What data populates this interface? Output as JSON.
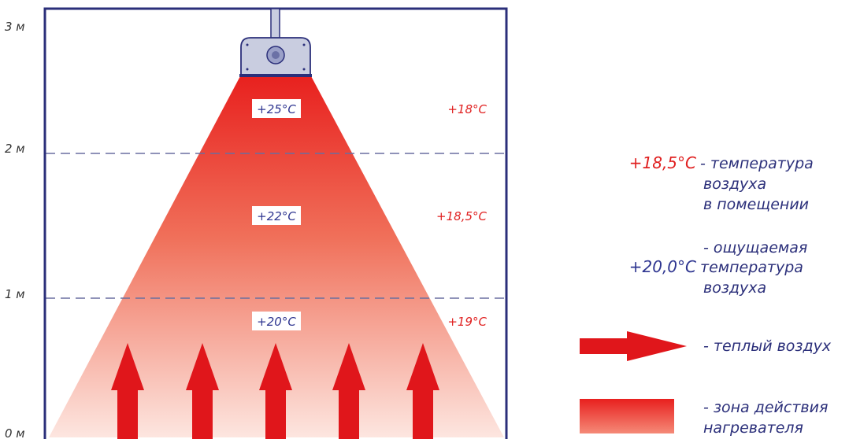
{
  "axis_labels": [
    "3 м",
    "2 м",
    "1 м",
    "0 м"
  ],
  "zones": [
    {
      "felt": "+25°C",
      "air": "+18°C"
    },
    {
      "felt": "+22°C",
      "air": "+18,5°C"
    },
    {
      "felt": "+20°C",
      "air": "+19°C"
    }
  ],
  "legend": {
    "air_temp_value": "+18,5°C",
    "air_temp_desc": [
      "- температура",
      "воздуха",
      "в помещении"
    ],
    "felt_temp_value": "+20,0°C",
    "felt_temp_desc": [
      "- ощущаемая",
      "температура",
      "воздуха"
    ],
    "warm_air_desc": "- теплый воздух",
    "heater_zone_desc": [
      "- зона действия",
      "нагревателя"
    ]
  },
  "colors": {
    "room_border": "#2b2f7a",
    "felt_text": "#2e3590",
    "air_text": "#e02020",
    "beam_top": "#e8201e",
    "beam_bottom": "#fde6e0",
    "arrow": "#e0161b",
    "dash": "#6a6fa0"
  }
}
